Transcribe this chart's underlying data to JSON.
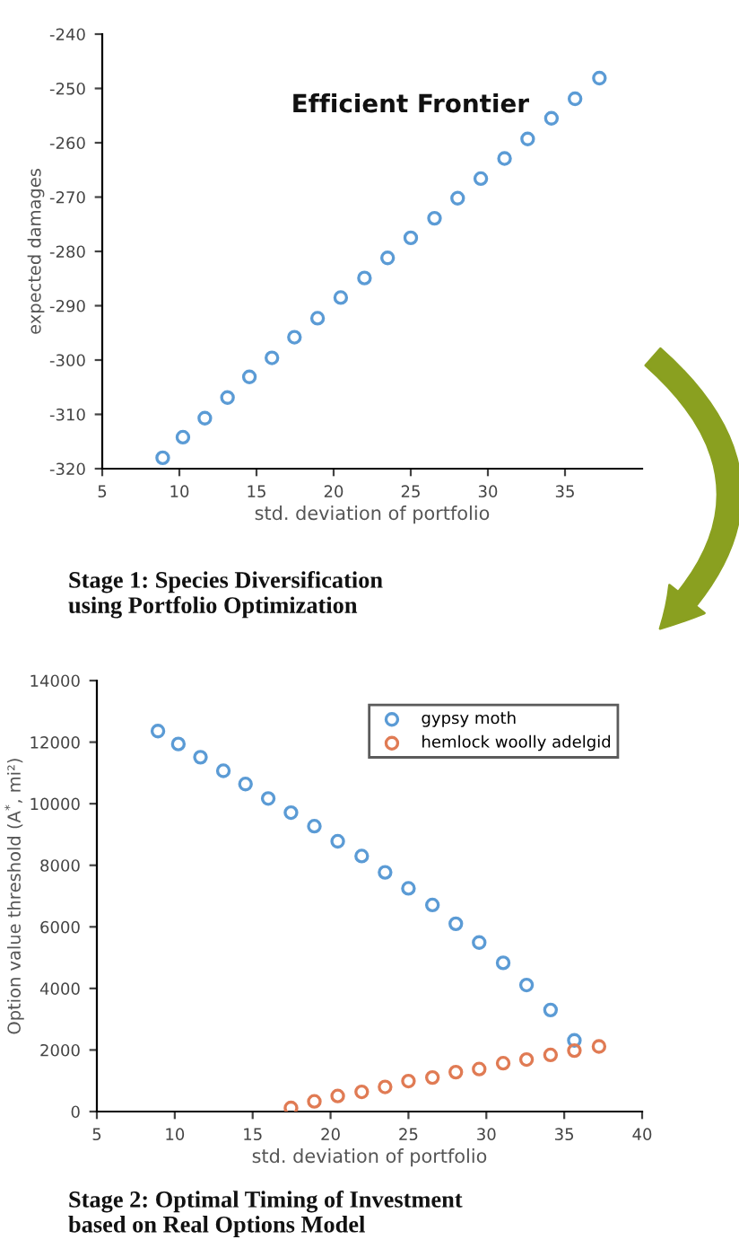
{
  "chart_data": [
    {
      "type": "scatter",
      "title": "Efficient Frontier",
      "xlabel": "std. deviation of portfolio",
      "ylabel": "expected damages",
      "annotations": [
        "Stage 1: Species Diversification\nusing Portfolio Optimization"
      ],
      "x": [
        8.92,
        10.23,
        11.65,
        13.12,
        14.54,
        16.0,
        17.46,
        18.96,
        20.46,
        22.0,
        23.5,
        25.0,
        26.54,
        28.04,
        29.54,
        31.08,
        32.58,
        34.12,
        35.65,
        37.23
      ],
      "series": [
        {
          "color": "#5b9bd5",
          "values": [
            -318.0,
            -314.2,
            -310.7,
            -306.9,
            -303.1,
            -299.6,
            -295.8,
            -292.3,
            -288.5,
            -284.9,
            -281.2,
            -277.5,
            -273.9,
            -270.2,
            -266.6,
            -262.9,
            -259.3,
            -255.5,
            -251.9,
            -248.1
          ]
        }
      ],
      "xlim": [
        5,
        40
      ],
      "xticks": [
        5,
        10,
        15,
        20,
        25,
        30,
        35
      ],
      "ylim": [
        -320,
        -240
      ],
      "yticks": [
        -320,
        -310,
        -300,
        -290,
        -280,
        -270,
        -260,
        -250,
        -240
      ],
      "grid": false,
      "legend": false,
      "marker": "circle"
    },
    {
      "type": "scatter",
      "xlabel": "std. deviation of portfolio",
      "ylabel": "Option value threshold (A$^{*}$, mi²)",
      "annotations": [
        "Stage 2: Optimal Timing of Investment\nbased on Real Options Model"
      ],
      "x": [
        8.92,
        10.23,
        11.65,
        13.12,
        14.54,
        16.0,
        17.46,
        18.96,
        20.46,
        22.0,
        23.5,
        25.0,
        26.54,
        28.04,
        29.54,
        31.08,
        32.58,
        34.12,
        35.65,
        37.23
      ],
      "series": [
        {
          "name": "gypsy moth",
          "color": "#5b9bd5",
          "values": [
            12360,
            11940,
            11510,
            11070,
            10640,
            10170,
            9710,
            9270,
            8780,
            8300,
            7770,
            7250,
            6710,
            6100,
            5490,
            4830,
            4110,
            3300,
            2310,
            null
          ]
        },
        {
          "name": "hemlock woolly adelgid",
          "color": "#e07b54",
          "values": [
            null,
            null,
            null,
            null,
            null,
            null,
            116,
            330,
            505,
            640,
            800,
            990,
            1105,
            1280,
            1380,
            1570,
            1690,
            1840,
            1980,
            2115
          ]
        }
      ],
      "xlim": [
        5,
        40
      ],
      "xticks": [
        5,
        10,
        15,
        20,
        25,
        30,
        35,
        40
      ],
      "ylim": [
        0,
        14000
      ],
      "yticks": [
        0,
        2000,
        4000,
        6000,
        8000,
        10000,
        12000,
        14000
      ],
      "grid": false,
      "legend": "top right",
      "marker": "circle"
    }
  ]
}
